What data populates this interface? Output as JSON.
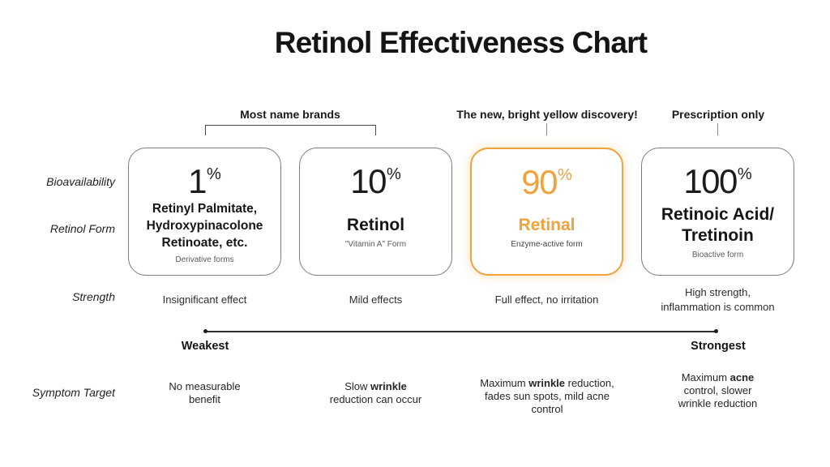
{
  "title": "Retinol Effectiveness Chart",
  "header_annotations": {
    "brands": "Most name brands",
    "discovery": "The new, bright yellow discovery!",
    "prescription": "Prescription only"
  },
  "side_labels": {
    "bioavailability": "Bioavailability",
    "retinol_form": "Retinol Form",
    "strength": "Strength",
    "symptom_target": "Symptom Target"
  },
  "percent_sign": "%",
  "scale": {
    "left_label": "Weakest",
    "right_label": "Strongest"
  },
  "colors": {
    "accent_orange": "#F0A23C",
    "text_dark": "#1C1C1C",
    "muted_gray": "#5A5A5A",
    "card_border_gray": "#7D7D7D"
  },
  "columns": [
    {
      "bioavailability_percent": "1",
      "form_name": "Retinyl Palmitate,\nHydroxypinacolone\nRetinoate, etc.",
      "form_subtitle": "Derivative forms",
      "strength": "Insignificant effect",
      "symptom_target": [
        {
          "text": "No measurable\nbenefit",
          "bold": false
        }
      ],
      "highlighted": false
    },
    {
      "bioavailability_percent": "10",
      "form_name": "Retinol",
      "form_subtitle": "\"Vitamin A\" Form",
      "strength": "Mild effects",
      "symptom_target": [
        {
          "text": "Slow ",
          "bold": false
        },
        {
          "text": "wrinkle",
          "bold": true
        },
        {
          "text": "\nreduction can occur",
          "bold": false
        }
      ],
      "highlighted": false
    },
    {
      "bioavailability_percent": "90",
      "form_name": "Retinal",
      "form_subtitle": "Enzyme-active form",
      "strength": "Full effect, no irritation",
      "symptom_target": [
        {
          "text": "Maximum ",
          "bold": false
        },
        {
          "text": "wrinkle",
          "bold": true
        },
        {
          "text": " reduction,\nfades sun spots, mild acne\ncontrol",
          "bold": false
        }
      ],
      "highlighted": true
    },
    {
      "bioavailability_percent": "100",
      "form_name": "Retinoic Acid/\nTretinoin",
      "form_subtitle": "Bioactive form",
      "strength": "High strength,\ninflammation is common",
      "symptom_target": [
        {
          "text": "Maximum ",
          "bold": false
        },
        {
          "text": "acne",
          "bold": true
        },
        {
          "text": "\ncontrol, slower\nwrinkle reduction",
          "bold": false
        }
      ],
      "highlighted": false
    }
  ]
}
